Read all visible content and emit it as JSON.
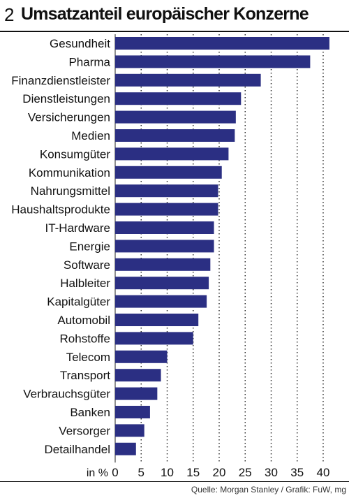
{
  "header": {
    "number": "2",
    "title": "Umsatzanteil europäischer Konzerne"
  },
  "source": "Quelle: Morgan Stanley / Grafik: FuW, mg",
  "colors": {
    "bar": "#2b2f83",
    "text": "#111111"
  },
  "chart_data": {
    "type": "bar",
    "orientation": "horizontal",
    "title": "Umsatzanteil europäischer Konzerne",
    "xlabel": "in %",
    "ylabel": "",
    "xlim": [
      0,
      42
    ],
    "ticks": [
      0,
      5,
      10,
      15,
      20,
      25,
      30,
      35,
      40
    ],
    "grid": "dotted vertical",
    "categories": [
      "Gesundheit",
      "Pharma",
      "Finanzdienstleister",
      "Dienstleistungen",
      "Versicherungen",
      "Medien",
      "Konsumgüter",
      "Kommunikation",
      "Nahrungsmittel",
      "Haushaltsprodukte",
      "IT-Hardware",
      "Energie",
      "Software",
      "Halbleiter",
      "Kapitalgüter",
      "Automobil",
      "Rohstoffe",
      "Telecom",
      "Transport",
      "Verbrauchsgüter",
      "Banken",
      "Versorger",
      "Detailhandel"
    ],
    "values": [
      41.2,
      37.5,
      28,
      24.2,
      23.2,
      23,
      21.8,
      20.5,
      19.8,
      19.8,
      19,
      19,
      18.3,
      18,
      17.6,
      16,
      15,
      10,
      8.8,
      8.1,
      6.7,
      5.6,
      4
    ]
  }
}
